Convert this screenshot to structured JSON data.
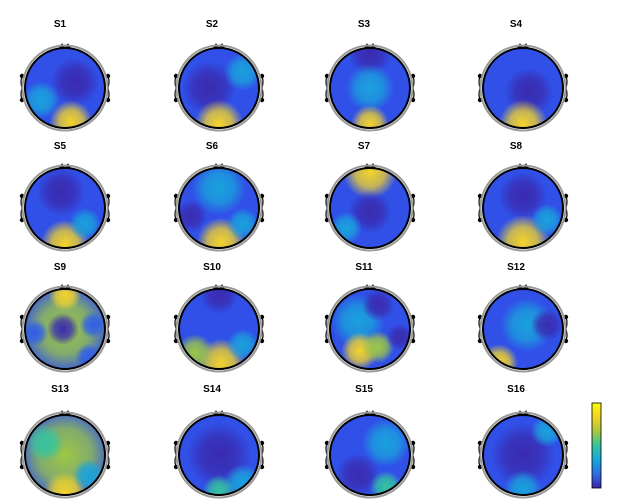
{
  "figure": {
    "panels": [
      {
        "title": "S1"
      },
      {
        "title": "S2"
      },
      {
        "title": "S3"
      },
      {
        "title": "S4"
      },
      {
        "title": "S5"
      },
      {
        "title": "S6"
      },
      {
        "title": "S7"
      },
      {
        "title": "S8"
      },
      {
        "title": "S9"
      },
      {
        "title": "S10"
      },
      {
        "title": "S11"
      },
      {
        "title": "S12"
      },
      {
        "title": "S13"
      },
      {
        "title": "S14"
      },
      {
        "title": "S15"
      },
      {
        "title": "S16"
      }
    ],
    "colorbar": {
      "colors": [
        "#3d26a8",
        "#2f6ee6",
        "#15a7d9",
        "#36c49a",
        "#a8c840",
        "#f2d324",
        "#f9fb0e"
      ]
    },
    "colors": {
      "background_blue": "#3050e8",
      "head_outline": "#000000",
      "head_shadow": "#9a9a9a"
    }
  }
}
